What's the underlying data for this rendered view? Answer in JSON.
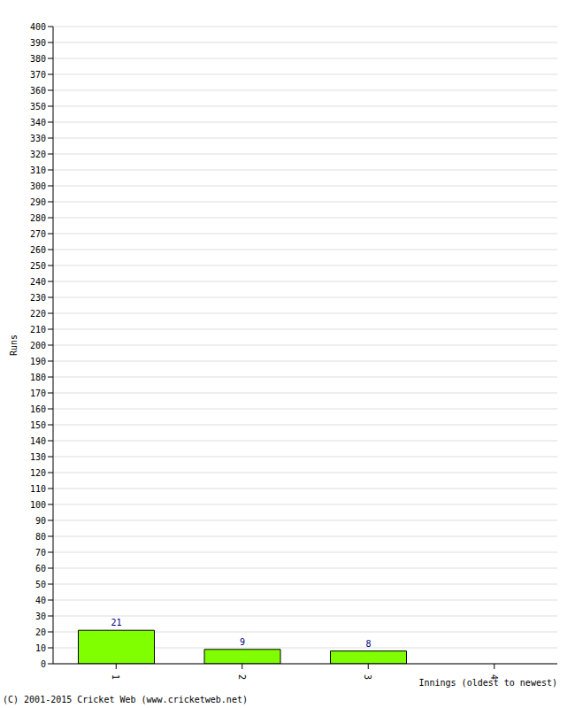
{
  "chart_data": {
    "type": "bar",
    "categories": [
      "1",
      "2",
      "3",
      "4"
    ],
    "values": [
      21,
      9,
      8,
      0
    ],
    "color": "#80ff00",
    "x_label": "Innings (oldest to newest)",
    "y_label": "Runs",
    "annotations": [
      "(C) 2001-2015 Cricket Web (www.cricketweb.net)"
    ],
    "ylim": [
      0,
      400
    ],
    "yticks": [
      0,
      10,
      20,
      30,
      40,
      50,
      60,
      70,
      80,
      90,
      100,
      110,
      120,
      130,
      140,
      150,
      160,
      170,
      180,
      190,
      200,
      210,
      220,
      230,
      240,
      250,
      260,
      270,
      280,
      290,
      300,
      310,
      320,
      330,
      340,
      350,
      360,
      370,
      380,
      390,
      400
    ],
    "grid": true,
    "data_labels": true
  }
}
